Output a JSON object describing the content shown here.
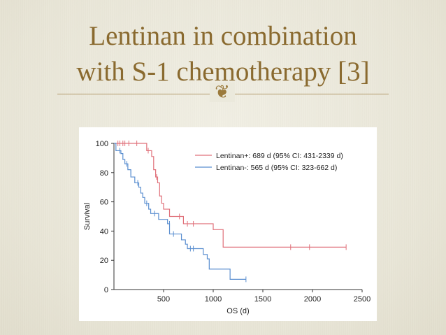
{
  "slide": {
    "title_line1": "Lentinan in combination",
    "title_line2": "with S-1 chemotherapy [3]",
    "ornament_icon": "fleuron-icon",
    "title_color": "#8a6a2f"
  },
  "chart_data": {
    "type": "line",
    "step": true,
    "xlabel": "OS (d)",
    "ylabel": "Survival",
    "xlim": [
      0,
      2500
    ],
    "ylim": [
      0,
      100
    ],
    "xticks": [
      500,
      1000,
      1500,
      2000,
      2500
    ],
    "yticks": [
      0,
      20,
      40,
      60,
      80,
      100
    ],
    "grid": false,
    "legend_position": "top-right",
    "series": [
      {
        "name": "Lentinan+: 689 d (95% CI: 431-2339 d)",
        "color": "#e0707a",
        "points": [
          [
            0,
            100
          ],
          [
            320,
            100
          ],
          [
            330,
            95
          ],
          [
            380,
            91
          ],
          [
            400,
            82
          ],
          [
            420,
            77
          ],
          [
            440,
            73
          ],
          [
            460,
            64
          ],
          [
            480,
            59
          ],
          [
            500,
            55
          ],
          [
            560,
            50
          ],
          [
            680,
            50
          ],
          [
            700,
            45
          ],
          [
            960,
            45
          ],
          [
            1000,
            41
          ],
          [
            1080,
            41
          ],
          [
            1100,
            29
          ],
          [
            2339,
            29
          ]
        ],
        "censored": [
          [
            40,
            100
          ],
          [
            60,
            100
          ],
          [
            90,
            100
          ],
          [
            110,
            100
          ],
          [
            150,
            100
          ],
          [
            230,
            100
          ],
          [
            345,
            95
          ],
          [
            430,
            77
          ],
          [
            660,
            50
          ],
          [
            740,
            45
          ],
          [
            800,
            45
          ],
          [
            1780,
            29
          ],
          [
            1970,
            29
          ],
          [
            2339,
            29
          ]
        ]
      },
      {
        "name": "Lentinan-: 565 d (95% CI: 323-662 d)",
        "color": "#5b8fd0",
        "points": [
          [
            0,
            100
          ],
          [
            20,
            95
          ],
          [
            70,
            93
          ],
          [
            90,
            89
          ],
          [
            110,
            86
          ],
          [
            140,
            82
          ],
          [
            170,
            77
          ],
          [
            210,
            73
          ],
          [
            250,
            70
          ],
          [
            270,
            66
          ],
          [
            290,
            63
          ],
          [
            310,
            59
          ],
          [
            350,
            55
          ],
          [
            370,
            52
          ],
          [
            430,
            52
          ],
          [
            450,
            48
          ],
          [
            540,
            45
          ],
          [
            560,
            38
          ],
          [
            660,
            38
          ],
          [
            680,
            34
          ],
          [
            720,
            31
          ],
          [
            740,
            28
          ],
          [
            880,
            28
          ],
          [
            900,
            24
          ],
          [
            940,
            21
          ],
          [
            960,
            14
          ],
          [
            1150,
            14
          ],
          [
            1170,
            7
          ],
          [
            1330,
            7
          ]
        ],
        "censored": [
          [
            60,
            95
          ],
          [
            130,
            86
          ],
          [
            170,
            80
          ],
          [
            240,
            73
          ],
          [
            330,
            59
          ],
          [
            410,
            52
          ],
          [
            560,
            45
          ],
          [
            600,
            38
          ],
          [
            770,
            28
          ],
          [
            800,
            28
          ],
          [
            1330,
            7
          ]
        ]
      }
    ]
  }
}
